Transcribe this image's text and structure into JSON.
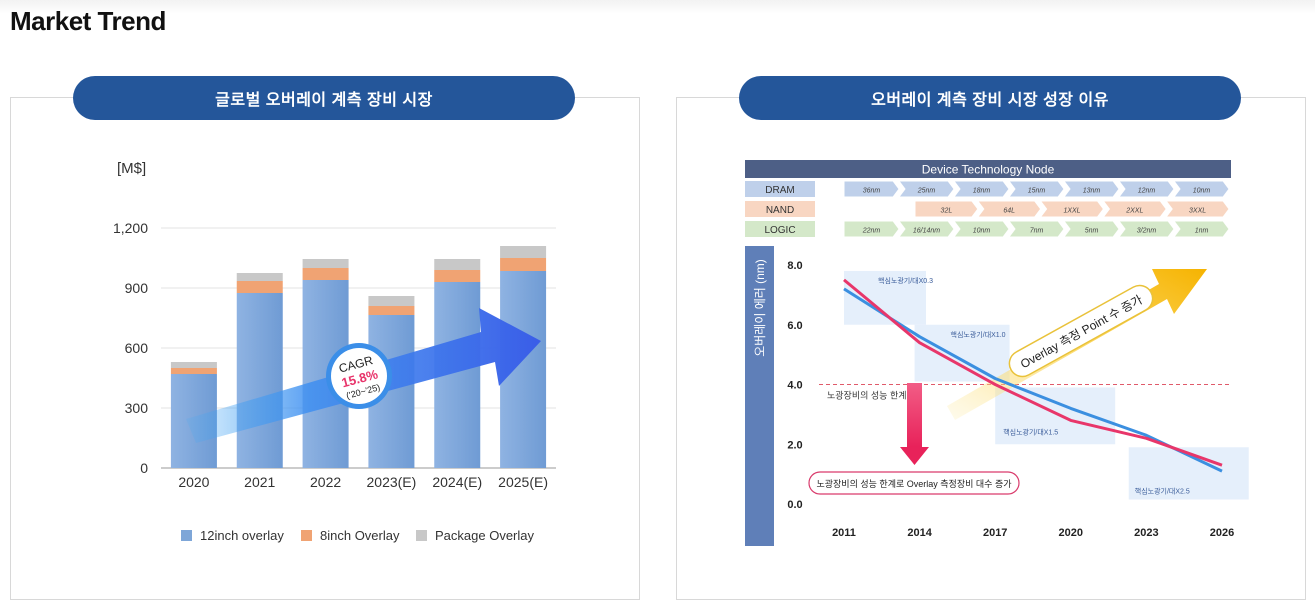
{
  "page": {
    "title": "Market Trend"
  },
  "left_panel": {
    "pill_title": "글로벌 오버레이 계측 장비 시장"
  },
  "right_panel": {
    "pill_title": "오버레이 계측 장비 시장 성장 이유"
  },
  "chart_data": [
    {
      "type": "bar",
      "stacked": true,
      "ylabel": "[M$]",
      "ylim": [
        0,
        1200
      ],
      "yticks": [
        "0",
        "300",
        "600",
        "900",
        "1,200"
      ],
      "categories": [
        "2020",
        "2021",
        "2022",
        "2023(E)",
        "2024(E)",
        "2025(E)"
      ],
      "series": [
        {
          "name": "12inch overlay",
          "color": "#7ea6d8",
          "values": [
            470,
            875,
            940,
            765,
            930,
            985
          ]
        },
        {
          "name": "8inch Overlay",
          "color": "#f0a373",
          "values": [
            30,
            60,
            60,
            45,
            60,
            65
          ]
        },
        {
          "name": "Package Overlay",
          "color": "#c8c8c8",
          "values": [
            30,
            40,
            45,
            50,
            55,
            60
          ]
        }
      ],
      "grid": true,
      "legend": "bottom",
      "annotation": {
        "label": "CAGR",
        "value": "15.8%",
        "period": "('20~'25)"
      }
    },
    {
      "type": "line",
      "header": {
        "title": "Device Technology Node",
        "rows": [
          {
            "label": "DRAM",
            "color": "#bfd0ea",
            "nodes": [
              "36nm",
              "25nm",
              "18nm",
              "15nm",
              "13nm",
              "12nm",
              "10nm"
            ]
          },
          {
            "label": "NAND",
            "color": "#f8d6c2",
            "nodes": [
              "32L",
              "64L",
              "1XXL",
              "2XXL",
              "3XXL"
            ]
          },
          {
            "label": "LOGIC",
            "color": "#d4e8c9",
            "nodes": [
              "22nm",
              "16/14nm",
              "10nm",
              "7nm",
              "5nm",
              "3/2nm",
              "1nm"
            ]
          }
        ]
      },
      "ylabel": "오버레이 에러 (nm)",
      "ylim": [
        0,
        8
      ],
      "yticks": [
        "8.0",
        "6.0",
        "4.0",
        "2.0",
        "0.0"
      ],
      "xticks": [
        "2011",
        "2014",
        "2017",
        "2020",
        "2023",
        "2026"
      ],
      "series": [
        {
          "name": "",
          "color": "#3b8fe0",
          "x": [
            2011,
            2014,
            2017,
            2020,
            2023,
            2026
          ],
          "y": [
            7.2,
            5.6,
            4.2,
            3.2,
            2.3,
            1.1
          ]
        },
        {
          "name": "",
          "color": "#e8366a",
          "x": [
            2011,
            2014,
            2017,
            2020,
            2023,
            2026
          ],
          "y": [
            7.5,
            5.4,
            4.0,
            2.8,
            2.2,
            1.3
          ]
        }
      ],
      "threshold": {
        "y": 4.0,
        "color": "#e05a6a",
        "label": "노광장비의 성능 한계"
      },
      "boxes": [
        {
          "label": "핵심노광기/대X0.3"
        },
        {
          "label": "핵심노광기/대X1.0"
        },
        {
          "label": "핵심노광기/대X1.5"
        },
        {
          "label": "핵심노광기/대X2.5"
        }
      ],
      "arrow_label": "Overlay 측정 Point 수 증가",
      "callout": "노광장비의 성능 한계로 Overlay 측정장비 대수 증가"
    }
  ]
}
